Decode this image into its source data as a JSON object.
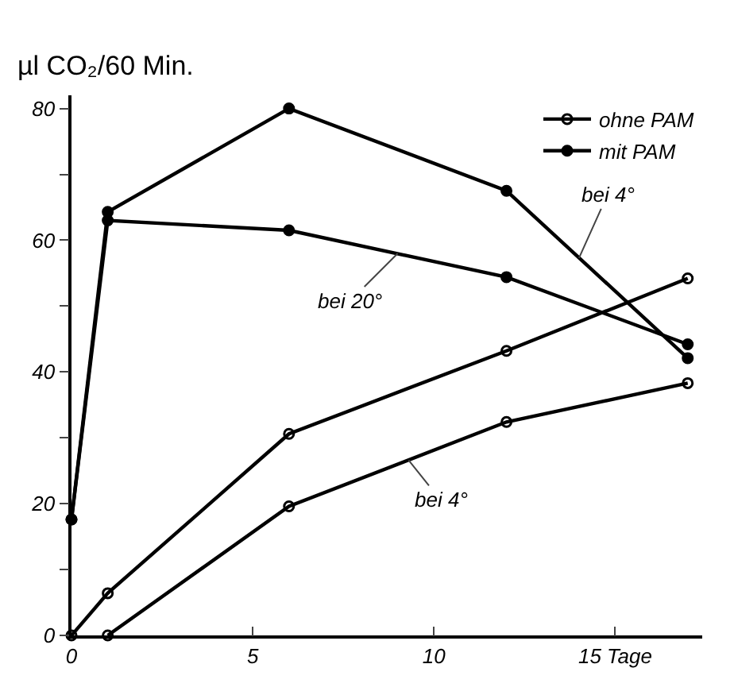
{
  "chart_data": {
    "type": "line",
    "ylabel": "µl CO₂/60 Min.",
    "series": [
      {
        "name": "ohne PAM",
        "color": "#000000",
        "marker": "circle-open",
        "x": [
          0,
          1,
          6,
          12,
          17
        ],
        "values": [
          0,
          6.4,
          30.6,
          43.2,
          54.2
        ]
      },
      {
        "color": "#000000",
        "marker": "circle-open",
        "x": [
          1,
          6,
          12,
          17
        ],
        "values": [
          0,
          19.6,
          32.4,
          38.3
        ]
      },
      {
        "name": "mit PAM",
        "color": "#000000",
        "marker": "circle",
        "x": [
          0,
          1,
          6,
          12,
          17
        ],
        "values": [
          17.6,
          64.3,
          80,
          67.5,
          42.1
        ]
      },
      {
        "color": "#000000",
        "marker": "circle",
        "x": [
          0,
          1,
          6,
          12,
          17
        ],
        "values": [
          17.6,
          63,
          61.5,
          54.4,
          44.2
        ]
      }
    ],
    "annotations": [
      {
        "text": "bei 4°",
        "x": 14,
        "y": 57.3
      },
      {
        "text": "bei 20°",
        "x": 9,
        "y": 58
      },
      {
        "text": "bei 4°",
        "x": 9.3,
        "y": 26.6
      }
    ],
    "xlim": [
      0,
      17.4
    ],
    "ylim": [
      0,
      82
    ],
    "xticks": [
      0,
      5,
      10,
      {
        "value": 15,
        "label": "15 Tage"
      }
    ],
    "yticks": [
      0,
      {
        "value": 10,
        "label": null
      },
      20,
      {
        "value": 30,
        "label": null
      },
      40,
      {
        "value": 50,
        "label": null
      },
      60,
      {
        "value": 70,
        "label": null
      },
      80
    ],
    "grid": false,
    "legend": "top right",
    "line_style": "solid"
  }
}
